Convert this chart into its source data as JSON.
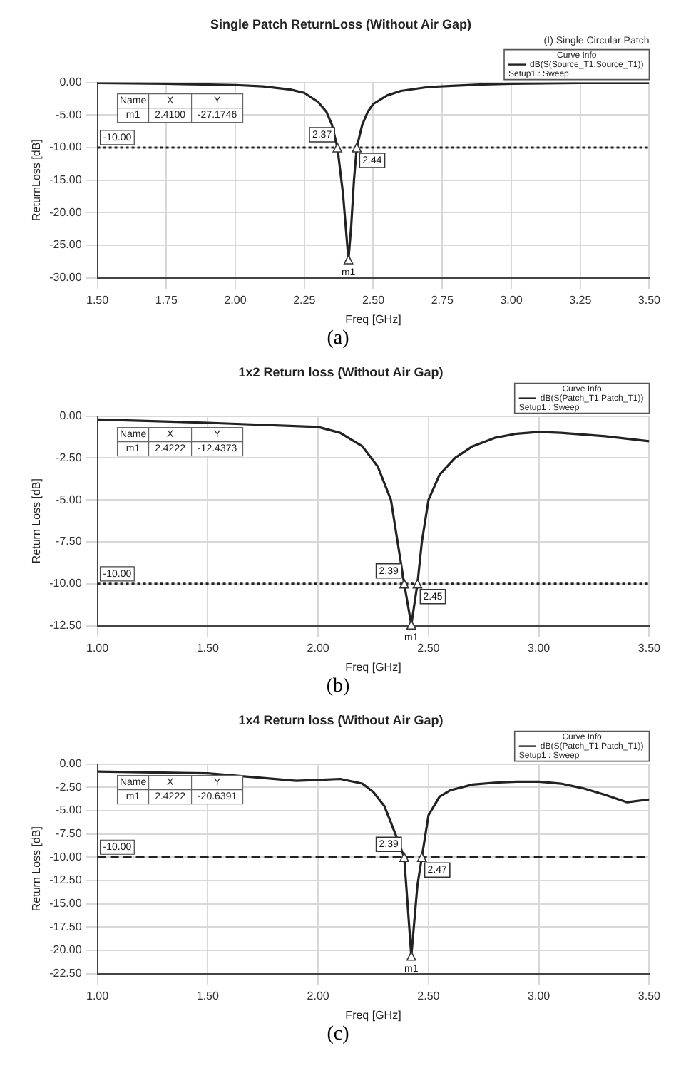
{
  "chart_data": [
    {
      "type": "line",
      "title": "Single Patch ReturnLoss (Without Air Gap)",
      "xlabel": "Freq [GHz]",
      "ylabel": "ReturnLoss [dB]",
      "legend_title": "Curve Info",
      "legend": "top right",
      "grid": true,
      "xlim": [
        1.5,
        3.5
      ],
      "xticks": [
        {
          "value": 1.5,
          "label": "1.50"
        },
        {
          "value": 1.75,
          "label": "1.75"
        },
        {
          "value": 2,
          "label": "2.00"
        },
        {
          "value": 2.25,
          "label": "2.25"
        },
        {
          "value": 2.5,
          "label": "2.50"
        },
        {
          "value": 2.75,
          "label": "2.75"
        },
        {
          "value": 3,
          "label": "3.00"
        },
        {
          "value": 3.25,
          "label": "3.25"
        },
        {
          "value": 3.5,
          "label": "3.50"
        }
      ],
      "ylim": [
        -30,
        0
      ],
      "yticks": [
        {
          "value": 0,
          "label": "0.00"
        },
        {
          "value": -5,
          "label": "-5.00"
        },
        {
          "value": -10,
          "label": "-10.00"
        },
        {
          "value": -15,
          "label": "-15.00"
        },
        {
          "value": -20,
          "label": "-20.00"
        },
        {
          "value": -25,
          "label": "-25.00"
        },
        {
          "value": -30,
          "label": "-30.00"
        }
      ],
      "series": [
        {
          "name": "dB(S(Source_T1,Source_T1))",
          "color": "#222222",
          "x": [
            1.5,
            1.75,
            2.0,
            2.1,
            2.2,
            2.25,
            2.3,
            2.33,
            2.35,
            2.37,
            2.39,
            2.41,
            2.42,
            2.43,
            2.44,
            2.46,
            2.48,
            2.5,
            2.55,
            2.6,
            2.7,
            2.8,
            2.9,
            3.0,
            3.25,
            3.5
          ],
          "values": [
            -0.1,
            -0.2,
            -0.4,
            -0.6,
            -1.1,
            -1.6,
            -3.0,
            -4.5,
            -6.5,
            -10,
            -17,
            -27.2,
            -22,
            -15,
            -10,
            -6.5,
            -4.5,
            -3.3,
            -2.0,
            -1.3,
            -0.7,
            -0.5,
            -0.3,
            -0.2,
            -0.1,
            -0.1
          ]
        }
      ],
      "ref_lines": [
        {
          "axis": "y",
          "value": -10,
          "label": "-10.00",
          "line_style": "dotted",
          "color": "#222222"
        }
      ],
      "annotations": [
        "Name",
        "X",
        "Y",
        "m1",
        "2.4100",
        "-27.1746",
        "Setup1 : Sweep",
        "(I) Single Circular Patch",
        {
          "text": "2.37",
          "x": 2.37,
          "y": -10
        },
        {
          "text": "2.44",
          "x": 2.44,
          "y": -10
        },
        {
          "text": "m1",
          "x": 2.41,
          "y": -27.2
        },
        "(a)"
      ]
    },
    {
      "type": "line",
      "title": "1x2 Return loss (Without Air Gap)",
      "xlabel": "Freq [GHz]",
      "ylabel": "Return Loss [dB]",
      "legend_title": "Curve Info",
      "legend": "top right",
      "grid": true,
      "xlim": [
        1,
        3.5
      ],
      "xticks": [
        {
          "value": 1,
          "label": "1.00"
        },
        {
          "value": 1.5,
          "label": "1.50"
        },
        {
          "value": 2,
          "label": "2.00"
        },
        {
          "value": 2.5,
          "label": "2.50"
        },
        {
          "value": 3,
          "label": "3.00"
        },
        {
          "value": 3.5,
          "label": "3.50"
        }
      ],
      "ylim": [
        -12.5,
        0
      ],
      "yticks": [
        {
          "value": 0,
          "label": "0.00"
        },
        {
          "value": -2.5,
          "label": "-2.50"
        },
        {
          "value": -5,
          "label": "-5.00"
        },
        {
          "value": -7.5,
          "label": "-7.50"
        },
        {
          "value": -10,
          "label": "-10.00"
        },
        {
          "value": -12.5,
          "label": "-12.50"
        }
      ],
      "series": [
        {
          "name": "dB(S(Patch_T1,Patch_T1))",
          "color": "#222222",
          "x": [
            1.0,
            1.5,
            2.0,
            2.1,
            2.2,
            2.27,
            2.33,
            2.36,
            2.39,
            2.4222,
            2.45,
            2.47,
            2.5,
            2.55,
            2.62,
            2.7,
            2.8,
            2.9,
            3.0,
            3.1,
            3.3,
            3.5
          ],
          "values": [
            -0.2,
            -0.4,
            -0.65,
            -1.0,
            -1.8,
            -3.0,
            -5.0,
            -7.5,
            -10,
            -12.44,
            -10,
            -7.5,
            -5.0,
            -3.5,
            -2.5,
            -1.8,
            -1.3,
            -1.05,
            -0.95,
            -1.0,
            -1.2,
            -1.5
          ]
        }
      ],
      "ref_lines": [
        {
          "axis": "y",
          "value": -10,
          "label": "-10.00",
          "line_style": "dotted",
          "color": "#222222"
        }
      ],
      "annotations": [
        "Name",
        "X",
        "Y",
        "m1",
        "2.4222",
        "-12.4373",
        "Setup1 : Sweep",
        {
          "text": "2.39",
          "x": 2.39,
          "y": -10
        },
        {
          "text": "2.45",
          "x": 2.45,
          "y": -10
        },
        {
          "text": "m1",
          "x": 2.4222,
          "y": -12.44
        },
        "(b)"
      ]
    },
    {
      "type": "line",
      "title": "1x4 Return loss (Without Air Gap)",
      "xlabel": "Freq [GHz]",
      "ylabel": "Return Loss [dB]",
      "legend_title": "Curve Info",
      "legend": "top right",
      "grid": true,
      "xlim": [
        1,
        3.5
      ],
      "xticks": [
        {
          "value": 1,
          "label": "1.00"
        },
        {
          "value": 1.5,
          "label": "1.50"
        },
        {
          "value": 2,
          "label": "2.00"
        },
        {
          "value": 2.5,
          "label": "2.50"
        },
        {
          "value": 3,
          "label": "3.00"
        },
        {
          "value": 3.5,
          "label": "3.50"
        }
      ],
      "ylim": [
        -22.5,
        0
      ],
      "yticks": [
        {
          "value": 0,
          "label": "0.00"
        },
        {
          "value": -2.5,
          "label": "-2.50"
        },
        {
          "value": -5,
          "label": "-5.00"
        },
        {
          "value": -7.5,
          "label": "-7.50"
        },
        {
          "value": -10,
          "label": "-10.00"
        },
        {
          "value": -12.5,
          "label": "-12.50"
        },
        {
          "value": -15,
          "label": "-15.00"
        },
        {
          "value": -17.5,
          "label": "-17.50"
        },
        {
          "value": -20,
          "label": "-20.00"
        },
        {
          "value": -22.5,
          "label": "-22.50"
        }
      ],
      "series": [
        {
          "name": "dB(S(Patch_T1,Patch_T1))",
          "color": "#222222",
          "x": [
            1.0,
            1.25,
            1.5,
            1.75,
            1.9,
            2.0,
            2.1,
            2.2,
            2.25,
            2.3,
            2.35,
            2.39,
            2.4222,
            2.45,
            2.47,
            2.5,
            2.55,
            2.6,
            2.7,
            2.8,
            2.9,
            3.0,
            3.1,
            3.2,
            3.3,
            3.4,
            3.5
          ],
          "values": [
            -0.8,
            -0.9,
            -1.0,
            -1.5,
            -1.8,
            -1.7,
            -1.6,
            -2.1,
            -3.0,
            -4.5,
            -7.5,
            -10,
            -20.6,
            -13,
            -10,
            -5.5,
            -3.5,
            -2.8,
            -2.2,
            -2.0,
            -1.9,
            -1.9,
            -2.1,
            -2.6,
            -3.3,
            -4.1,
            -3.8
          ]
        }
      ],
      "ref_lines": [
        {
          "axis": "y",
          "value": -10,
          "label": "-10.00",
          "line_style": "dashed",
          "color": "#222222"
        }
      ],
      "annotations": [
        "Name",
        "X",
        "Y",
        "m1",
        "2.4222",
        "-20.6391",
        "Setup1 : Sweep",
        {
          "text": "2.39",
          "x": 2.39,
          "y": -10
        },
        {
          "text": "2.47",
          "x": 2.47,
          "y": -10
        },
        {
          "text": "m1",
          "x": 2.4222,
          "y": -20.6
        },
        "(c)"
      ]
    }
  ]
}
